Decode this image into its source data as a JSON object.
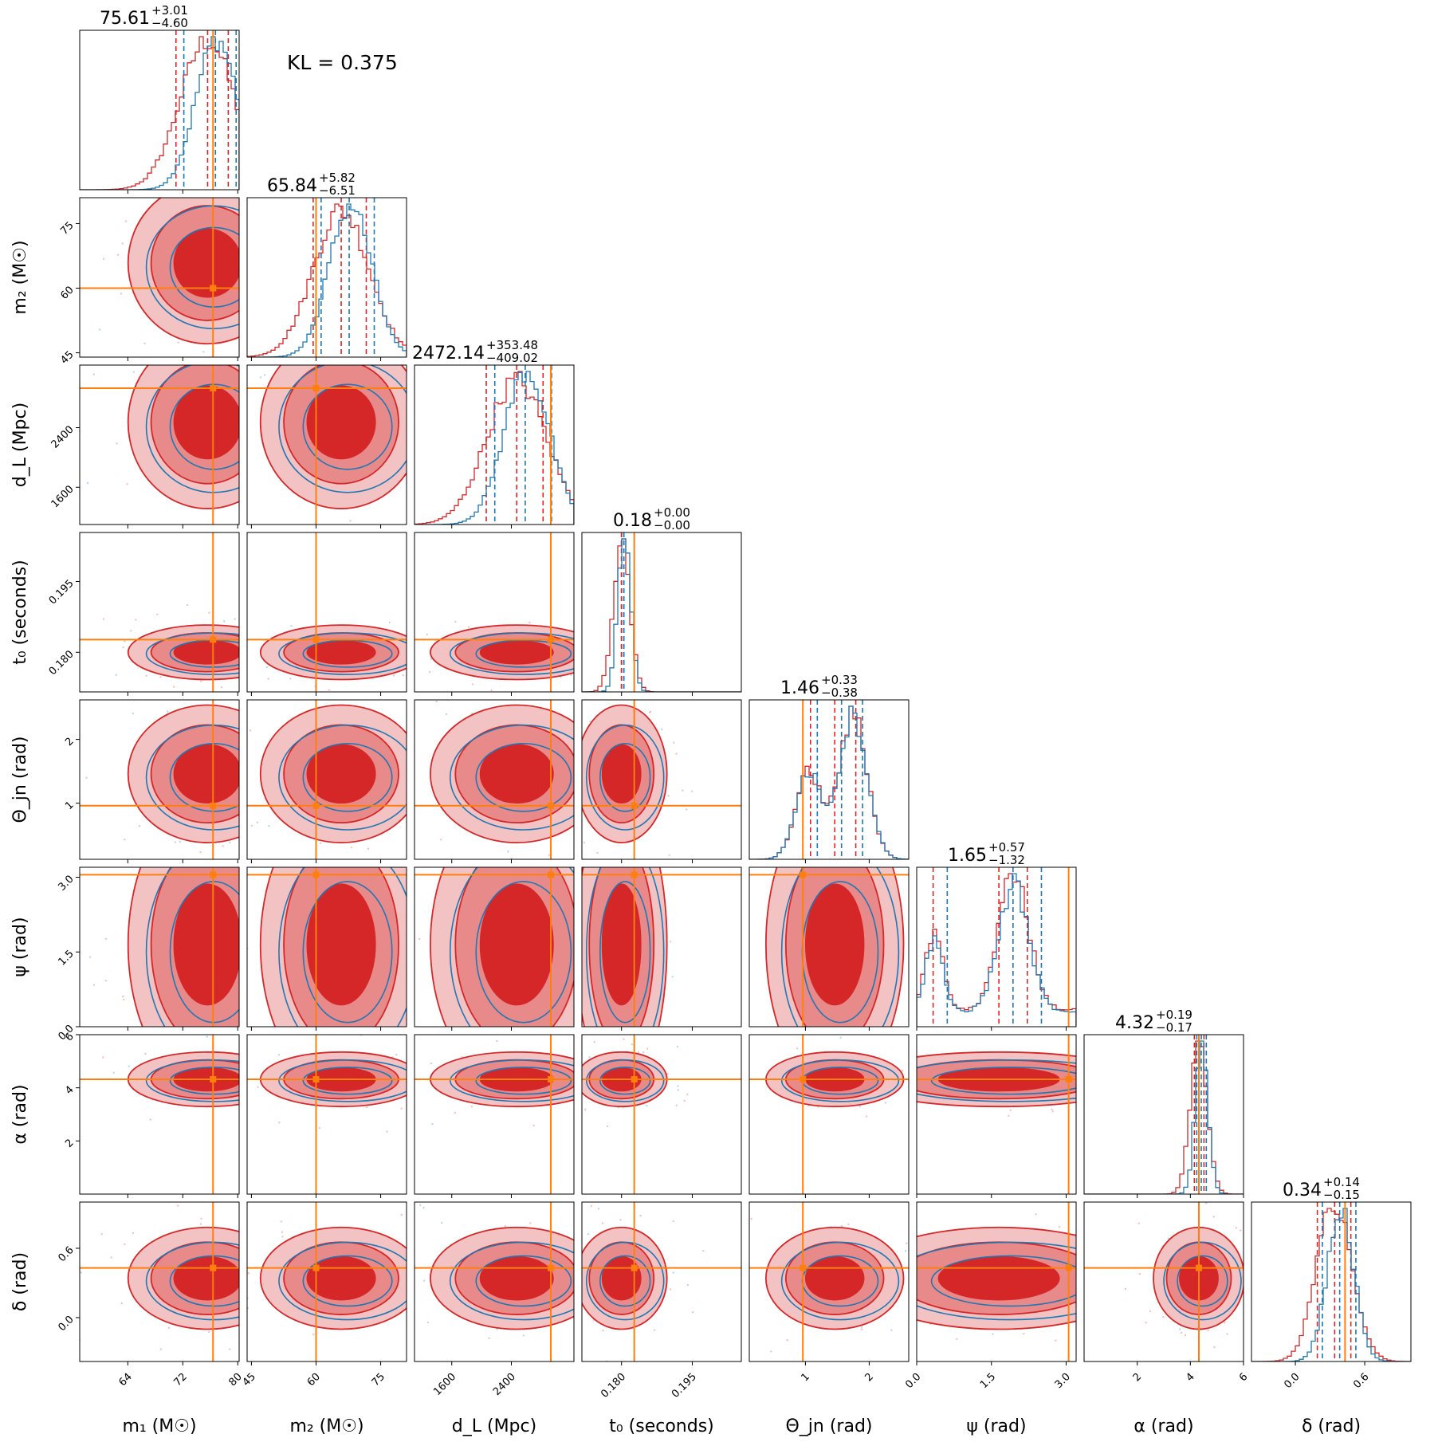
{
  "annotation": "KL = 0.375",
  "colors": {
    "red": "#d62728",
    "blue": "#1f77b4",
    "truth": "#ff7f0e"
  },
  "chart_data": {
    "type": "corner",
    "parameters": [
      {
        "id": "m1",
        "label": "m₁ (M☉)",
        "range": [
          57,
          80.2
        ],
        "ticks": [
          64,
          72,
          80
        ],
        "tick_labels": [
          "64",
          "72",
          "80"
        ],
        "truth": 76.4,
        "median": 75.61,
        "plus": 3.01,
        "minus": 4.6,
        "title_main": "75.61",
        "title_plus": "+3.01",
        "title_minus": "−4.60",
        "show_title": true
      },
      {
        "id": "m2",
        "label": "m₂ (M☉)",
        "range": [
          44,
          81
        ],
        "ticks": [
          45,
          60,
          75
        ],
        "tick_labels": [
          "45",
          "60",
          "75"
        ],
        "truth": 60.0,
        "median": 65.84,
        "plus": 5.82,
        "minus": 6.51,
        "title_main": "65.84",
        "title_plus": "+5.82",
        "title_minus": "−6.51",
        "show_title": true
      },
      {
        "id": "dL",
        "label": "d_L (Mpc)",
        "range": [
          1100,
          3240
        ],
        "ticks": [
          1600,
          2400
        ],
        "tick_labels": [
          "1600",
          "2400"
        ],
        "truth": 2930,
        "median": 2472.14,
        "plus": 353.48,
        "minus": 409.02,
        "title_main": "2472.14",
        "title_plus": "+353.48",
        "title_minus": "−409.02",
        "show_title": true
      },
      {
        "id": "t0",
        "label": "t₀ (seconds)",
        "range": [
          0.1716,
          0.2054
        ],
        "ticks": [
          0.18,
          0.195
        ],
        "tick_labels": [
          "0.180",
          "0.195"
        ],
        "truth": 0.1827,
        "median": 0.18,
        "plus": 0.0,
        "minus": 0.0,
        "title_main": "0.18",
        "title_plus": "+0.00",
        "title_minus": "−0.00",
        "show_title": true
      },
      {
        "id": "theta",
        "label": "Θ_jn (rad)",
        "range": [
          0.12,
          2.62
        ],
        "ticks": [
          1,
          2
        ],
        "tick_labels": [
          "1",
          "2"
        ],
        "truth": 0.96,
        "median": 1.46,
        "plus": 0.33,
        "minus": 0.38,
        "title_main": "1.46",
        "title_plus": "+0.33",
        "title_minus": "−0.38",
        "show_title": true
      },
      {
        "id": "psi",
        "label": "ψ (rad)",
        "range": [
          0.0,
          3.2
        ],
        "ticks": [
          0.0,
          1.5,
          3.0
        ],
        "tick_labels": [
          "0.0",
          "1.5",
          "3.0"
        ],
        "truth": 3.05,
        "median": 1.65,
        "plus": 0.57,
        "minus": 1.32,
        "title_main": "1.65",
        "title_plus": "+0.57",
        "title_minus": "−1.32",
        "show_title": true
      },
      {
        "id": "alpha",
        "label": "α (rad)",
        "range": [
          0.0,
          6.0
        ],
        "ticks": [
          2,
          4,
          6
        ],
        "tick_labels": [
          "2",
          "4",
          "6"
        ],
        "truth": 4.32,
        "median": 4.32,
        "plus": 0.19,
        "minus": 0.17,
        "title_main": "4.32",
        "title_plus": "+0.19",
        "title_minus": "−0.17",
        "show_title": true
      },
      {
        "id": "delta",
        "label": "δ (rad)",
        "range": [
          -0.38,
          1.0
        ],
        "ticks": [
          0.0,
          0.6
        ],
        "tick_labels": [
          "0.0",
          "0.6"
        ],
        "truth": 0.43,
        "median": 0.34,
        "plus": 0.14,
        "minus": 0.15,
        "title_main": "0.34",
        "title_plus": "+0.14",
        "title_minus": "−0.15",
        "show_title": true
      }
    ],
    "series": [
      {
        "color": "red"
      },
      {
        "color": "blue"
      }
    ]
  }
}
